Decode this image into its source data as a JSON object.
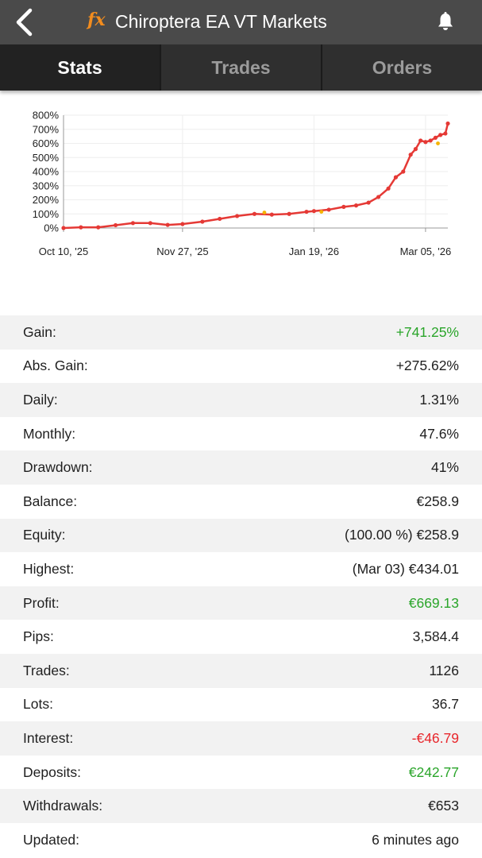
{
  "header": {
    "logo_text": "fx",
    "title": "Chiroptera EA VT Markets",
    "back_icon": "chevron-left-icon",
    "notification_icon": "bell-icon"
  },
  "tabs": [
    {
      "label": "Stats",
      "active": true
    },
    {
      "label": "Trades",
      "active": false
    },
    {
      "label": "Orders",
      "active": false
    }
  ],
  "chart_data": {
    "type": "line",
    "x_tick_labels": [
      "Oct 10, '25",
      "Nov 27, '25",
      "Jan 19, '26",
      "Mar 05, '26"
    ],
    "y_tick_labels": [
      "800%",
      "700%",
      "600%",
      "500%",
      "400%",
      "300%",
      "200%",
      "100%",
      "0%"
    ],
    "ylim": [
      0,
      800
    ],
    "grid": true,
    "series": [
      {
        "color": "#e53935",
        "x": [
          "2025-10-10",
          "2025-10-17",
          "2025-10-24",
          "2025-10-31",
          "2025-11-07",
          "2025-11-14",
          "2025-11-21",
          "2025-11-27",
          "2025-12-05",
          "2025-12-12",
          "2025-12-19",
          "2025-12-26",
          "2026-01-02",
          "2026-01-09",
          "2026-01-16",
          "2026-01-19",
          "2026-01-25",
          "2026-01-31",
          "2026-02-05",
          "2026-02-10",
          "2026-02-14",
          "2026-02-18",
          "2026-02-21",
          "2026-02-24",
          "2026-02-27",
          "2026-03-01",
          "2026-03-03",
          "2026-03-05",
          "2026-03-07",
          "2026-03-09",
          "2026-03-11",
          "2026-03-13",
          "2026-03-14"
        ],
        "y": [
          0,
          5,
          5,
          20,
          35,
          35,
          22,
          28,
          45,
          65,
          85,
          100,
          95,
          100,
          115,
          120,
          130,
          150,
          160,
          180,
          220,
          280,
          360,
          400,
          520,
          560,
          620,
          610,
          620,
          640,
          660,
          670,
          741
        ]
      },
      {
        "color": "#f5b400",
        "x": [
          "2025-12-30",
          "2026-01-22",
          "2026-03-10"
        ],
        "y": [
          110,
          115,
          600
        ]
      }
    ]
  },
  "stats": [
    {
      "label": "Gain:",
      "value": "+741.25%",
      "color": "green"
    },
    {
      "label": "Abs. Gain:",
      "value": "+275.62%",
      "color": ""
    },
    {
      "label": "Daily:",
      "value": "1.31%",
      "color": ""
    },
    {
      "label": "Monthly:",
      "value": "47.6%",
      "color": ""
    },
    {
      "label": "Drawdown:",
      "value": "41%",
      "color": ""
    },
    {
      "label": "Balance:",
      "value": "€258.9",
      "color": ""
    },
    {
      "label": "Equity:",
      "value": "(100.00 %) €258.9",
      "color": ""
    },
    {
      "label": "Highest:",
      "value": "(Mar 03) €434.01",
      "color": ""
    },
    {
      "label": "Profit:",
      "value": "€669.13",
      "color": "green"
    },
    {
      "label": "Pips:",
      "value": "3,584.4",
      "color": ""
    },
    {
      "label": "Trades:",
      "value": "1126",
      "color": ""
    },
    {
      "label": "Lots:",
      "value": "36.7",
      "color": ""
    },
    {
      "label": "Interest:",
      "value": "-€46.79",
      "color": "red"
    },
    {
      "label": "Deposits:",
      "value": "€242.77",
      "color": "green"
    },
    {
      "label": "Withdrawals:",
      "value": "€653",
      "color": ""
    },
    {
      "label": "Updated:",
      "value": "6 minutes ago",
      "color": ""
    }
  ]
}
